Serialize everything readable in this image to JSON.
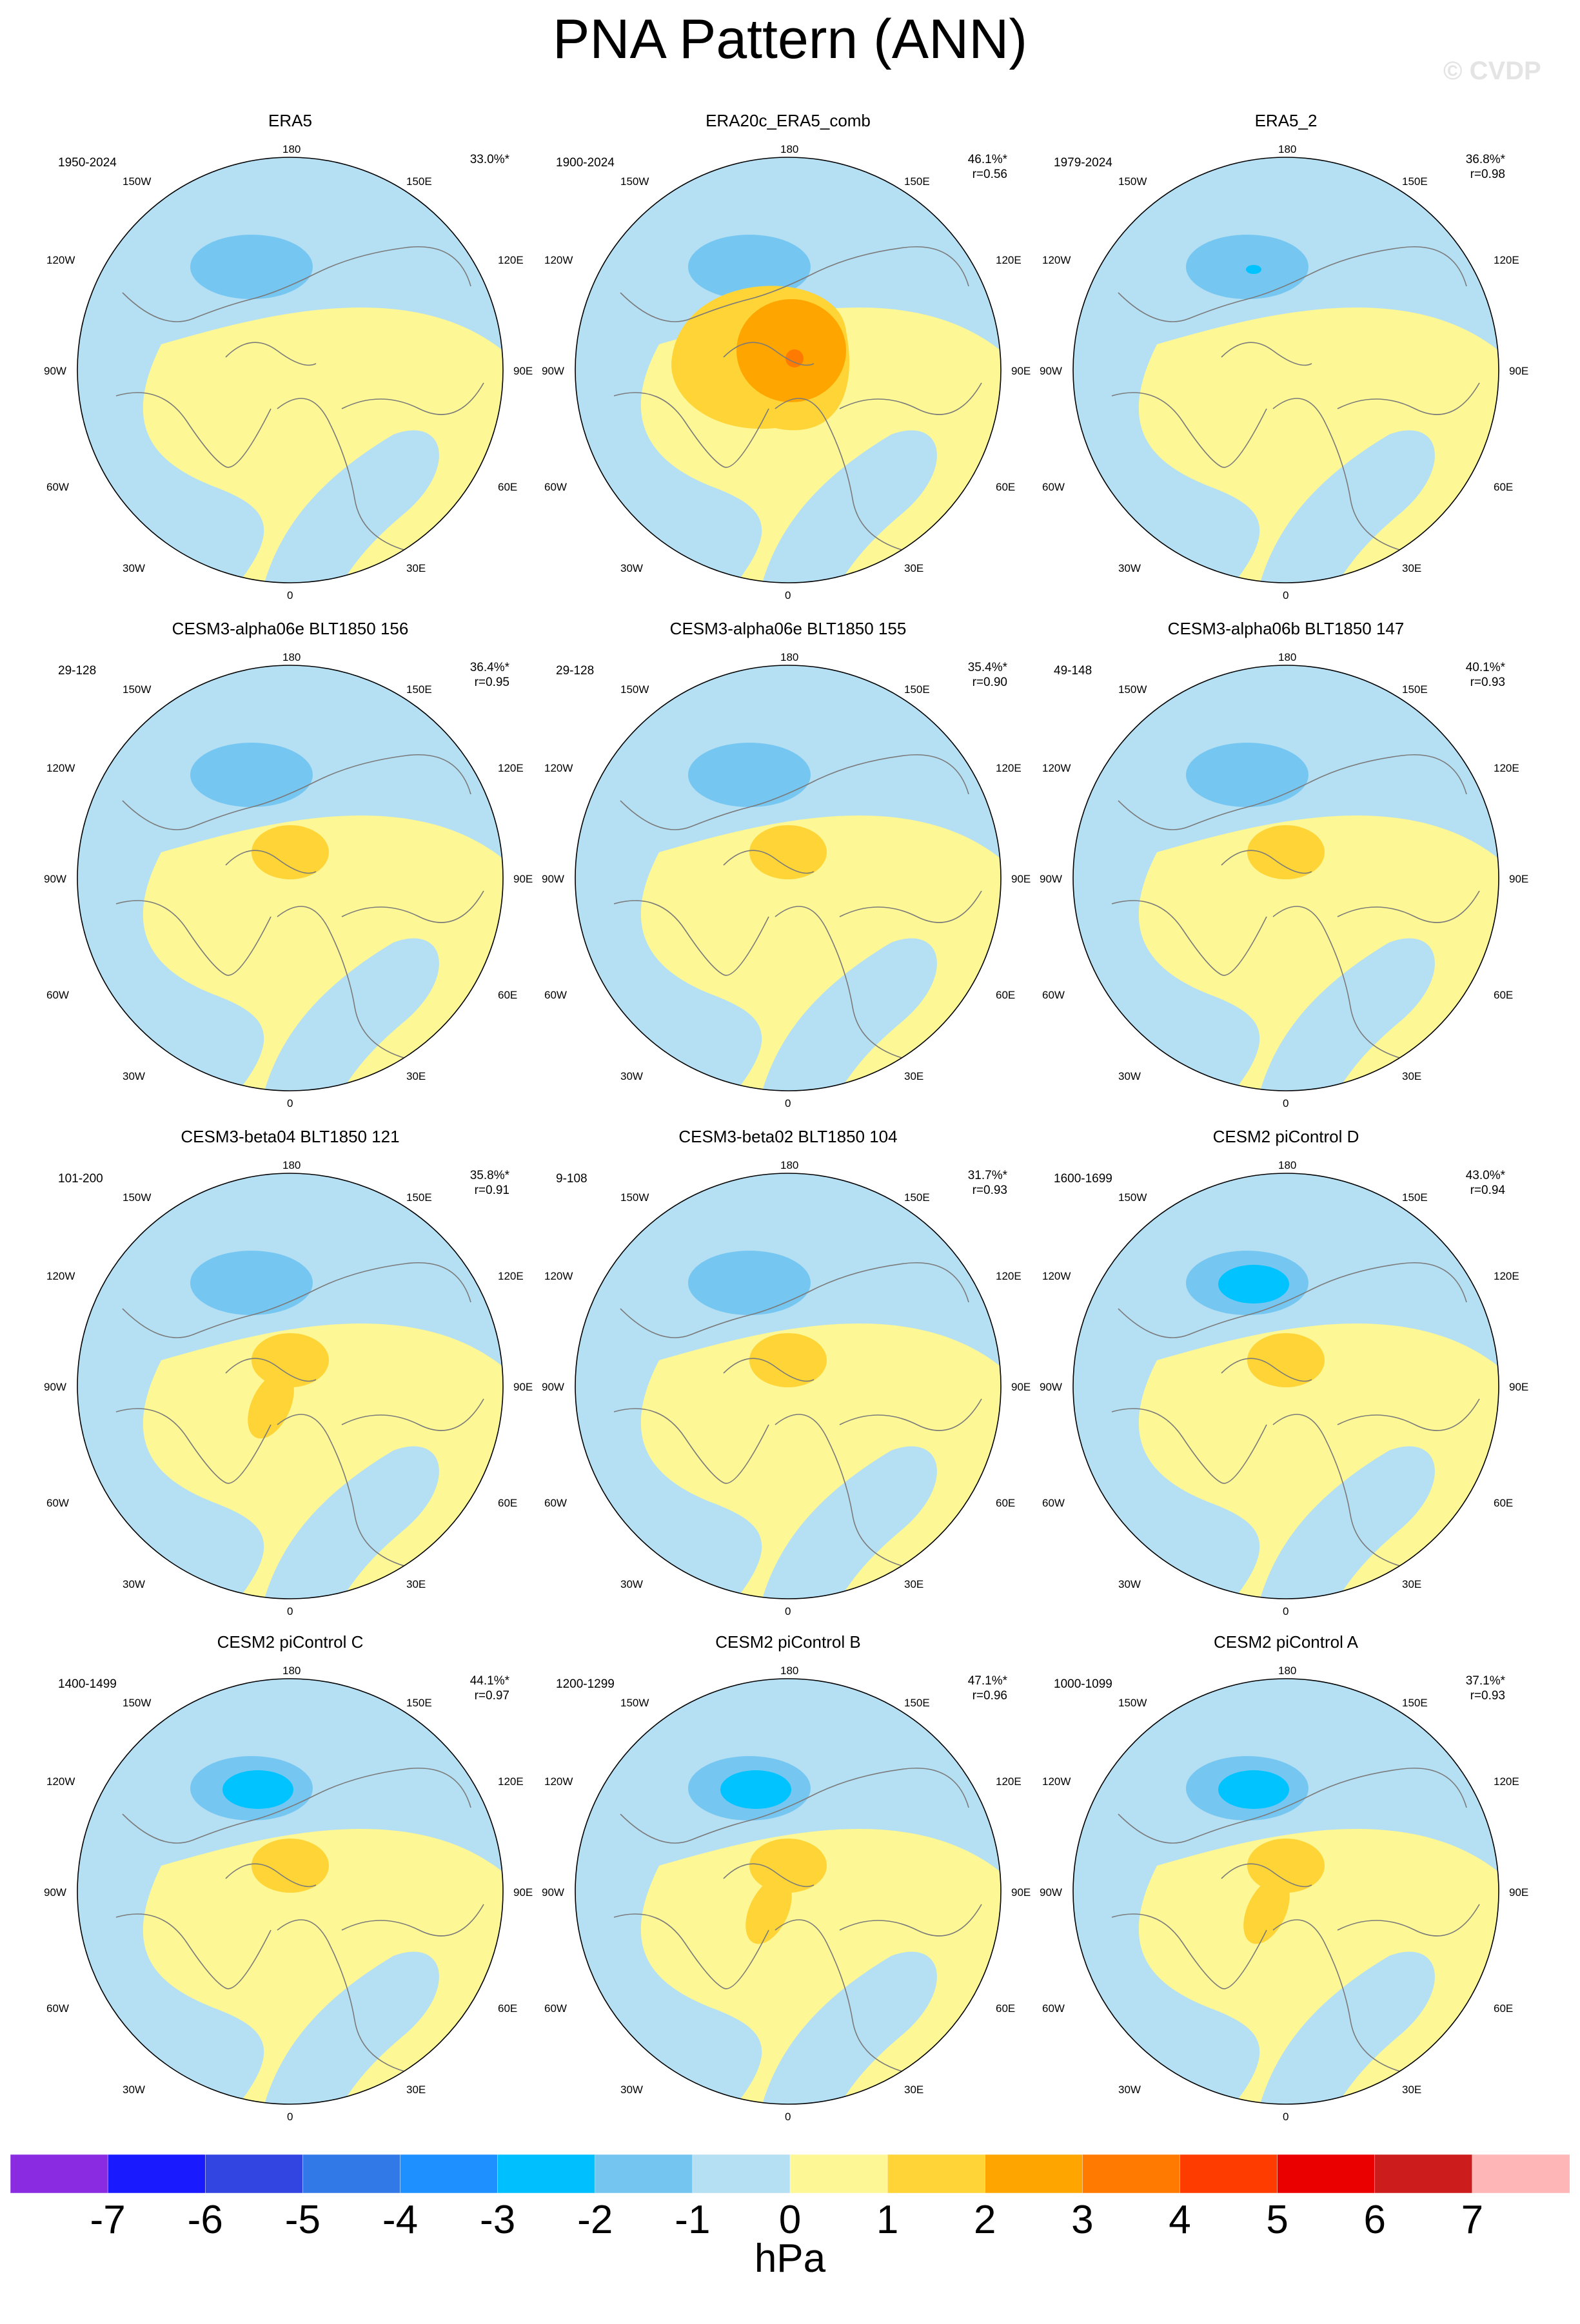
{
  "title": "PNA Pattern (ANN)",
  "watermark": "© CVDP",
  "colors": {
    "pos1": "#fdf795",
    "pos2": "#fed437",
    "pos3": "#fea500",
    "pos4": "#ff7a00",
    "neg1": "#b5dff2",
    "neg2": "#75c7f2",
    "neg3": "#00c3ff",
    "coast": "#7a7a7a"
  },
  "axis_labels": {
    "top": "180",
    "bottom": "0",
    "left": "90W",
    "right": "90E",
    "ul1": "150W",
    "ur1": "150E",
    "ul2": "120W",
    "ur2": "120E",
    "ll1": "60W",
    "lr1": "60E",
    "ll2": "30W",
    "lr2": "30E"
  },
  "panels": [
    {
      "title": "ERA5",
      "period": "1950-2024",
      "pct": "33.0%*",
      "r": "",
      "low_level": 2,
      "low_core": false,
      "high_level": 1,
      "high_shape": "blob",
      "neg_fraction": 0.52
    },
    {
      "title": "ERA20c_ERA5_comb",
      "period": "1900-2024",
      "pct": "46.1%*",
      "r": "r=0.56",
      "low_level": 1,
      "low_core": false,
      "high_level": 4,
      "high_shape": "big",
      "neg_fraction": 0.38
    },
    {
      "title": "ERA5_2",
      "period": "1979-2024",
      "pct": "36.8%*",
      "r": "r=0.98",
      "low_level": 2,
      "low_core": true,
      "high_level": 1,
      "high_shape": "blob",
      "neg_fraction": 0.52
    },
    {
      "title": "CESM3-alpha06e BLT1850 156",
      "period": "29-128",
      "pct": "36.4%*",
      "r": "r=0.95",
      "low_level": 2,
      "low_core": false,
      "high_level": 2,
      "high_shape": "blob",
      "neg_fraction": 0.45
    },
    {
      "title": "CESM3-alpha06e BLT1850 155",
      "period": "29-128",
      "pct": "35.4%*",
      "r": "r=0.90",
      "low_level": 2,
      "low_core": false,
      "high_level": 2,
      "high_shape": "blob",
      "neg_fraction": 0.42
    },
    {
      "title": "CESM3-alpha06b BLT1850 147",
      "period": "49-148",
      "pct": "40.1%*",
      "r": "r=0.93",
      "low_level": 2,
      "low_core": false,
      "high_level": 2,
      "high_shape": "blob",
      "neg_fraction": 0.45
    },
    {
      "title": "CESM3-beta04 BLT1850 121",
      "period": "101-200",
      "pct": "35.8%*",
      "r": "r=0.91",
      "low_level": 2,
      "low_core": false,
      "high_level": 2,
      "high_shape": "tail",
      "neg_fraction": 0.5
    },
    {
      "title": "CESM3-beta02 BLT1850 104",
      "period": "9-108",
      "pct": "31.7%*",
      "r": "r=0.93",
      "low_level": 2,
      "low_core": false,
      "high_level": 2,
      "high_shape": "blob",
      "neg_fraction": 0.45
    },
    {
      "title": "CESM2 piControl D",
      "period": "1600-1699",
      "pct": "43.0%*",
      "r": "r=0.94",
      "low_level": 3,
      "low_core": true,
      "high_level": 2,
      "high_shape": "blob",
      "neg_fraction": 0.47
    },
    {
      "title": "CESM2 piControl C",
      "period": "1400-1499",
      "pct": "44.1%*",
      "r": "r=0.97",
      "low_level": 3,
      "low_core": true,
      "high_level": 2,
      "high_shape": "blob",
      "neg_fraction": 0.55
    },
    {
      "title": "CESM2 piControl B",
      "period": "1200-1299",
      "pct": "47.1%*",
      "r": "r=0.96",
      "low_level": 3,
      "low_core": true,
      "high_level": 2,
      "high_shape": "tail",
      "neg_fraction": 0.52
    },
    {
      "title": "CESM2 piControl A",
      "period": "1000-1099",
      "pct": "37.1%*",
      "r": "r=0.93",
      "low_level": 3,
      "low_core": true,
      "high_level": 2,
      "high_shape": "tail",
      "neg_fraction": 0.5
    }
  ],
  "colorbar": {
    "colors": [
      "#8a2be2",
      "#1a1aff",
      "#3245e0",
      "#3279e8",
      "#1e90ff",
      "#00bfff",
      "#74c6f0",
      "#b5dff2",
      "#fdf795",
      "#fed437",
      "#fea500",
      "#ff7a00",
      "#ff3c00",
      "#eb0000",
      "#cc1c1c",
      "#ffb6b6"
    ],
    "ticks": [
      "-7",
      "-6",
      "-5",
      "-4",
      "-3",
      "-2",
      "-1",
      "0",
      "1",
      "2",
      "3",
      "4",
      "5",
      "6",
      "7"
    ],
    "units": "hPa"
  }
}
